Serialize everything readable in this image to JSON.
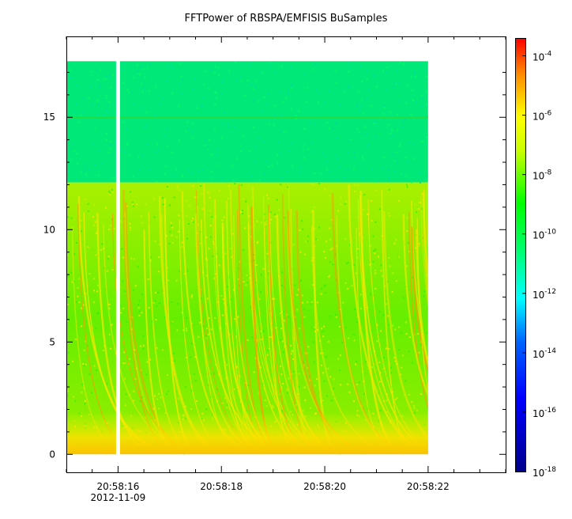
{
  "chart_data": {
    "type": "heatmap",
    "title": "FFTPower of RBSPA/EMFISIS  BuSamples",
    "xlabel": "",
    "ylabel": "",
    "x_ticks": [
      {
        "label": "20:58:16",
        "sublabel": "2012-11-09",
        "t": 16
      },
      {
        "label": "20:58:18",
        "sublabel": "",
        "t": 18
      },
      {
        "label": "20:58:20",
        "sublabel": "",
        "t": 20
      },
      {
        "label": "20:58:22",
        "sublabel": "",
        "t": 22
      }
    ],
    "x_range_seconds": [
      15.0,
      23.5
    ],
    "y_range": [
      -0.8,
      18.6
    ],
    "y_ticks": [
      0,
      5,
      10,
      15
    ],
    "data_extent": {
      "t_start": 15.0,
      "t_end": 22.0,
      "y_min": 0,
      "y_max": 17.5
    },
    "data_gap_at_t": 16.0,
    "features": {
      "upper_band_log_power": -12.5,
      "lower_band_log_power": -9.5,
      "band_boundary_y": 12.1,
      "constant_line_y": 15.0,
      "low_freq_floor_y": 1.0
    },
    "colorbar": {
      "scale": "log",
      "range_exponent": [
        -18,
        -3.4
      ],
      "ticks": [
        {
          "base": "10",
          "exp": "-4",
          "e": -4
        },
        {
          "base": "10",
          "exp": "-6",
          "e": -6
        },
        {
          "base": "10",
          "exp": "-8",
          "e": -8
        },
        {
          "base": "10",
          "exp": "-10",
          "e": -10
        },
        {
          "base": "10",
          "exp": "-12",
          "e": -12
        },
        {
          "base": "10",
          "exp": "-14",
          "e": -14
        },
        {
          "base": "10",
          "exp": "-16",
          "e": -16
        },
        {
          "base": "10",
          "exp": "-18",
          "e": -18
        }
      ],
      "colormap": [
        "#00008b",
        "#0000ff",
        "#00ffff",
        "#00ff00",
        "#ffff00",
        "#ff0000"
      ]
    }
  }
}
